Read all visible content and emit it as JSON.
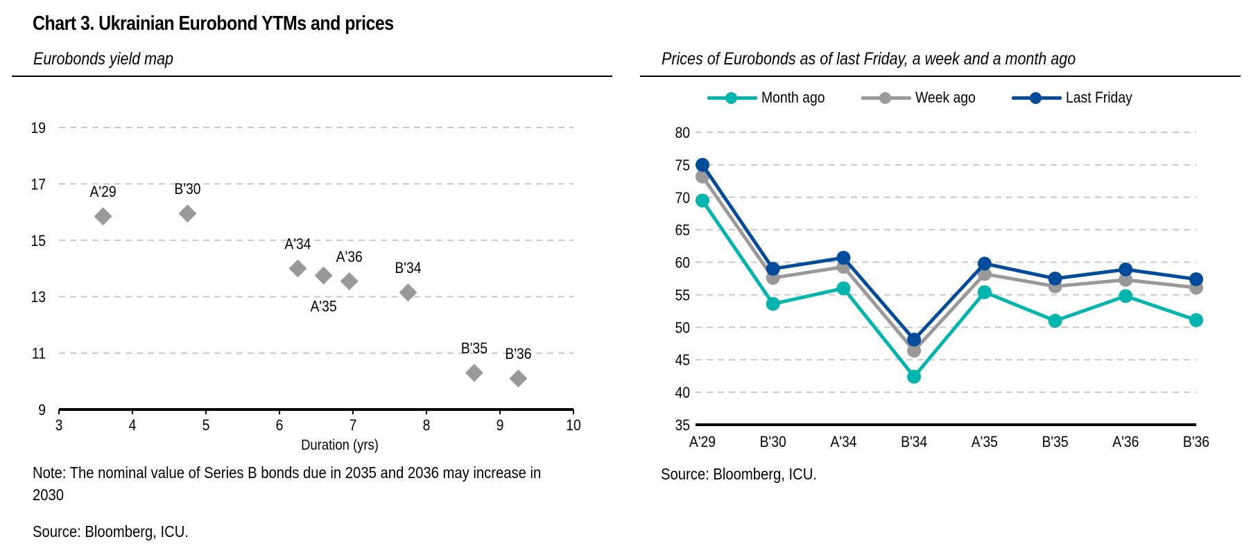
{
  "header": {
    "title": "Chart 3. Ukrainian Eurobond YTMs and prices"
  },
  "left_panel": {
    "subtitle": "Eurobonds yield map",
    "note": "Note: The nominal value of Series B bonds due in 2035 and 2036 may increase in",
    "note_cont": "2030",
    "source": "Source: Bloomberg, ICU."
  },
  "right_panel": {
    "subtitle": "Prices of Eurobonds as of last Friday, a week and a month ago",
    "source": "Source: Bloomberg, ICU.",
    "legend": [
      {
        "label": "Month ago",
        "color": "#00b5ad"
      },
      {
        "label": "Week ago",
        "color": "#999999"
      },
      {
        "label": "Last Friday",
        "color": "#004b9b"
      }
    ]
  },
  "chart_data": [
    {
      "type": "scatter",
      "title": "Eurobonds yield map",
      "xlabel": "Duration (yrs)",
      "ylabel": "",
      "xlim": [
        3,
        10
      ],
      "ylim": [
        9,
        19
      ],
      "xticks": [
        "3",
        "4",
        "5",
        "6",
        "7",
        "8",
        "9",
        "10"
      ],
      "yticks": [
        "9",
        "11",
        "13",
        "15",
        "17",
        "19"
      ],
      "grid": "horizontal-dashed",
      "marker": "diamond",
      "marker_color": "#999999",
      "points": [
        {
          "label": "A'29",
          "x": 3.6,
          "y": 15.85,
          "label_pos": "above"
        },
        {
          "label": "B'30",
          "x": 4.75,
          "y": 15.95,
          "label_pos": "above"
        },
        {
          "label": "A'34",
          "x": 6.25,
          "y": 14.0,
          "label_pos": "above"
        },
        {
          "label": "A'35",
          "x": 6.6,
          "y": 13.75,
          "label_pos": "below"
        },
        {
          "label": "A'36",
          "x": 6.95,
          "y": 13.55,
          "label_pos": "above"
        },
        {
          "label": "B'34",
          "x": 7.75,
          "y": 13.15,
          "label_pos": "above"
        },
        {
          "label": "B'35",
          "x": 8.65,
          "y": 10.3,
          "label_pos": "above"
        },
        {
          "label": "B'36",
          "x": 9.25,
          "y": 10.1,
          "label_pos": "above"
        }
      ]
    },
    {
      "type": "line",
      "title": "Prices of Eurobonds as of last Friday, a week and a month ago",
      "xlabel": "",
      "ylabel": "",
      "categories": [
        "A'29",
        "B'30",
        "A'34",
        "B'34",
        "A'35",
        "B'35",
        "A'36",
        "B'36"
      ],
      "ylim": [
        35,
        80
      ],
      "yticks": [
        "35",
        "40",
        "45",
        "50",
        "55",
        "60",
        "65",
        "70",
        "75",
        "80"
      ],
      "grid": "horizontal-dashed",
      "legend": "top",
      "series": [
        {
          "name": "Month ago",
          "color": "#00b5ad",
          "values": [
            69.5,
            53.6,
            56.0,
            42.4,
            55.4,
            51.0,
            54.8,
            51.1
          ]
        },
        {
          "name": "Week ago",
          "color": "#999999",
          "values": [
            73.2,
            57.6,
            59.3,
            46.4,
            58.2,
            56.3,
            57.3,
            56.1
          ]
        },
        {
          "name": "Last Friday",
          "color": "#004b9b",
          "values": [
            75.0,
            59.0,
            60.7,
            48.1,
            59.8,
            57.5,
            58.9,
            57.4
          ]
        }
      ]
    }
  ]
}
